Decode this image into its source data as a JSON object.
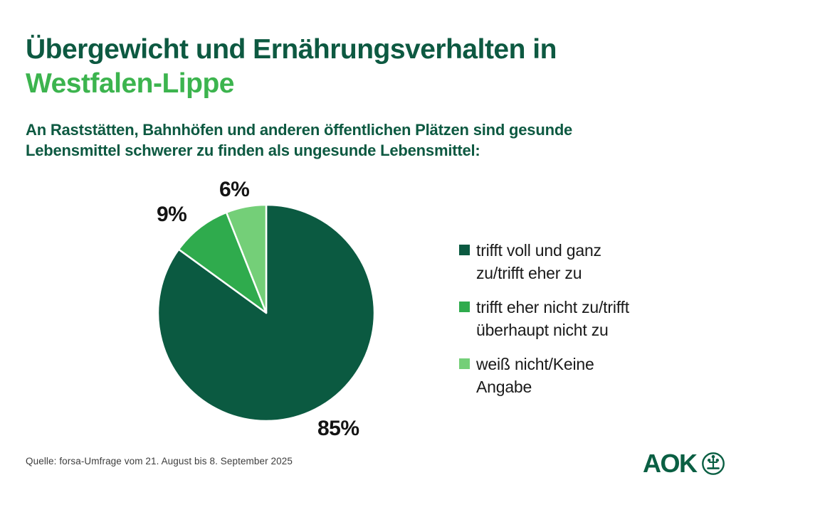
{
  "header": {
    "title_line1": "Übergewicht und Ernährungsverhalten in",
    "title_line2": "Westfalen-Lippe",
    "subtitle_line1": "An Raststätten, Bahnhöfen und anderen öffentlichen Plätzen sind gesunde",
    "subtitle_line2": "Lebensmittel schwerer zu finden als ungesunde Lebensmittel:"
  },
  "chart_data": {
    "type": "pie",
    "title": "",
    "categories": [
      "trifft voll und ganz zu/trifft eher zu",
      "trifft eher nicht zu/trifft überhaupt nicht zu",
      "weiß nicht/Keine Angabe"
    ],
    "values": [
      85,
      9,
      6
    ],
    "value_labels": [
      "85%",
      "9%",
      "6%"
    ],
    "colors": [
      "#0b5a41",
      "#2fab4d",
      "#74cf78"
    ],
    "start_angle_deg": 0,
    "direction": "clockwise",
    "slice_border_color": "#ffffff",
    "legend_position": "right"
  },
  "legend": {
    "items": [
      {
        "line1": "trifft voll und ganz",
        "line2": "zu/trifft eher zu",
        "color": "#0b5a41"
      },
      {
        "line1": "trifft eher nicht zu/trifft",
        "line2": "überhaupt nicht zu",
        "color": "#2fab4d"
      },
      {
        "line1": "weiß nicht/Keine",
        "line2": "Angabe",
        "color": "#74cf78"
      }
    ]
  },
  "footer": {
    "source": "Quelle: forsa-Umfrage vom 21. August bis 8. September 2025",
    "logo_text": "AOK"
  },
  "colors": {
    "title_dark_green": "#0d5941",
    "title_accent_green": "#3cb44e",
    "logo_green": "#0a5f43",
    "label_black": "#141414",
    "source_gray": "#3d3d3d",
    "background": "#ffffff"
  }
}
